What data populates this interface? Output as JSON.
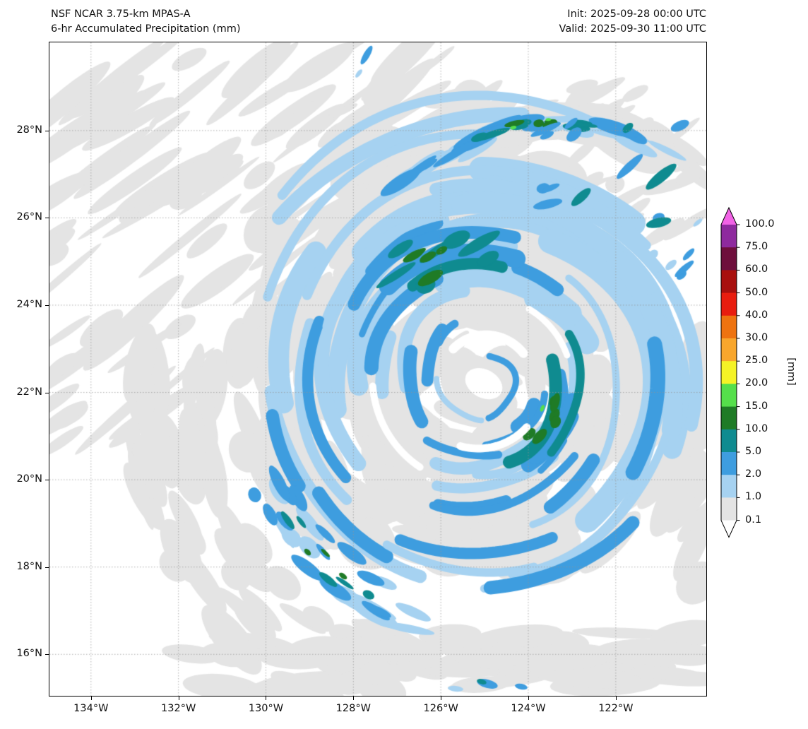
{
  "header": {
    "title_line1": "NSF NCAR 3.75-km MPAS-A",
    "title_line2": "6-hr Accumulated Precipitation (mm)",
    "init_label": "Init: 2025-09-28 00:00 UTC",
    "valid_label": "Valid: 2025-09-30 11:00 UTC"
  },
  "chart_data": {
    "type": "heatmap",
    "title": "NSF NCAR 3.75-km MPAS-A — 6-hr Accumulated Precipitation (mm)",
    "init_time": "2025-09-28 00:00 UTC",
    "valid_time": "2025-09-30 11:00 UTC",
    "projection": "lat-lon",
    "grid": true,
    "lon_range": [
      -134.95,
      -119.93
    ],
    "lat_range": [
      15.05,
      30.02
    ],
    "xticks": {
      "values": [
        -134,
        -132,
        -130,
        -128,
        -126,
        -124,
        -122
      ],
      "labels": [
        "134°W",
        "132°W",
        "130°W",
        "128°W",
        "126°W",
        "124°W",
        "122°W"
      ]
    },
    "yticks": {
      "values": [
        28,
        26,
        24,
        22,
        20,
        18,
        16
      ],
      "labels": [
        "28°N",
        "26°N",
        "24°N",
        "22°N",
        "20°N",
        "18°N",
        "16°N"
      ]
    },
    "colorbar": {
      "label": "[mm]",
      "units": "mm",
      "levels": [
        0.1,
        1.0,
        2.0,
        5.0,
        10.0,
        15.0,
        20.0,
        25.0,
        30.0,
        40.0,
        50.0,
        60.0,
        75.0,
        100.0
      ],
      "tick_labels_desc": [
        "100.0",
        "75.0",
        "60.0",
        "50.0",
        "40.0",
        "30.0",
        "25.0",
        "20.0",
        "15.0",
        "10.0",
        "5.0",
        "2.0",
        "1.0",
        "0.1"
      ],
      "colors": [
        "#e4e4e4",
        "#a6d2f1",
        "#3e9ddf",
        "#0f8b90",
        "#1f7b26",
        "#55df4b",
        "#f5f326",
        "#f8a62c",
        "#ee7310",
        "#e81d0f",
        "#a8100e",
        "#6e0f3c",
        "#8e2a9e"
      ],
      "over_color": "#f263e6",
      "under_color": "#ffffff",
      "extend": "both"
    },
    "storm": {
      "description": "Tropical cyclone with spiral rainbands; mostly 0.1-1 mm stratiform shield (gray), 1-5 mm spiral bands (blues), 5-15 mm embedded convection (teal/dark green), isolated 15-20 mm cells (bright green)",
      "center_lon": -125.05,
      "center_lat": 22.25,
      "eye_visible": true,
      "max_band_precip_mm": 20,
      "seed": 20250930
    }
  }
}
